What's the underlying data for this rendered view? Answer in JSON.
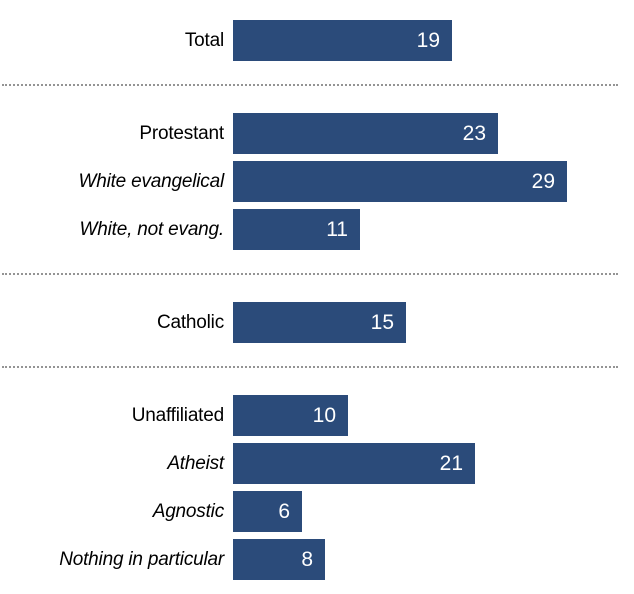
{
  "chart_data": {
    "type": "bar",
    "orientation": "horizontal",
    "title": "",
    "xlabel": "",
    "ylabel": "",
    "xlim": [
      0,
      34
    ],
    "grid": false,
    "legend": false,
    "bar_color": "#2b4b7a",
    "value_label_color": "#ffffff",
    "category_label_color": "#000000",
    "separator_color": "#949494",
    "value_labels_inside_bars": true,
    "groups": [
      {
        "name": "total",
        "rows": [
          {
            "label": "Total",
            "value": 19,
            "italic": false
          }
        ]
      },
      {
        "name": "protestant",
        "rows": [
          {
            "label": "Protestant",
            "value": 23,
            "italic": false
          },
          {
            "label": "White evangelical",
            "value": 29,
            "italic": true
          },
          {
            "label": "White, not evang.",
            "value": 11,
            "italic": true
          }
        ]
      },
      {
        "name": "catholic",
        "rows": [
          {
            "label": "Catholic",
            "value": 15,
            "italic": false
          }
        ]
      },
      {
        "name": "unaffiliated",
        "rows": [
          {
            "label": "Unaffiliated",
            "value": 10,
            "italic": false
          },
          {
            "label": "Atheist",
            "value": 21,
            "italic": true
          },
          {
            "label": "Agnostic",
            "value": 6,
            "italic": true
          },
          {
            "label": "Nothing in particular",
            "value": 8,
            "italic": true
          }
        ]
      }
    ]
  }
}
